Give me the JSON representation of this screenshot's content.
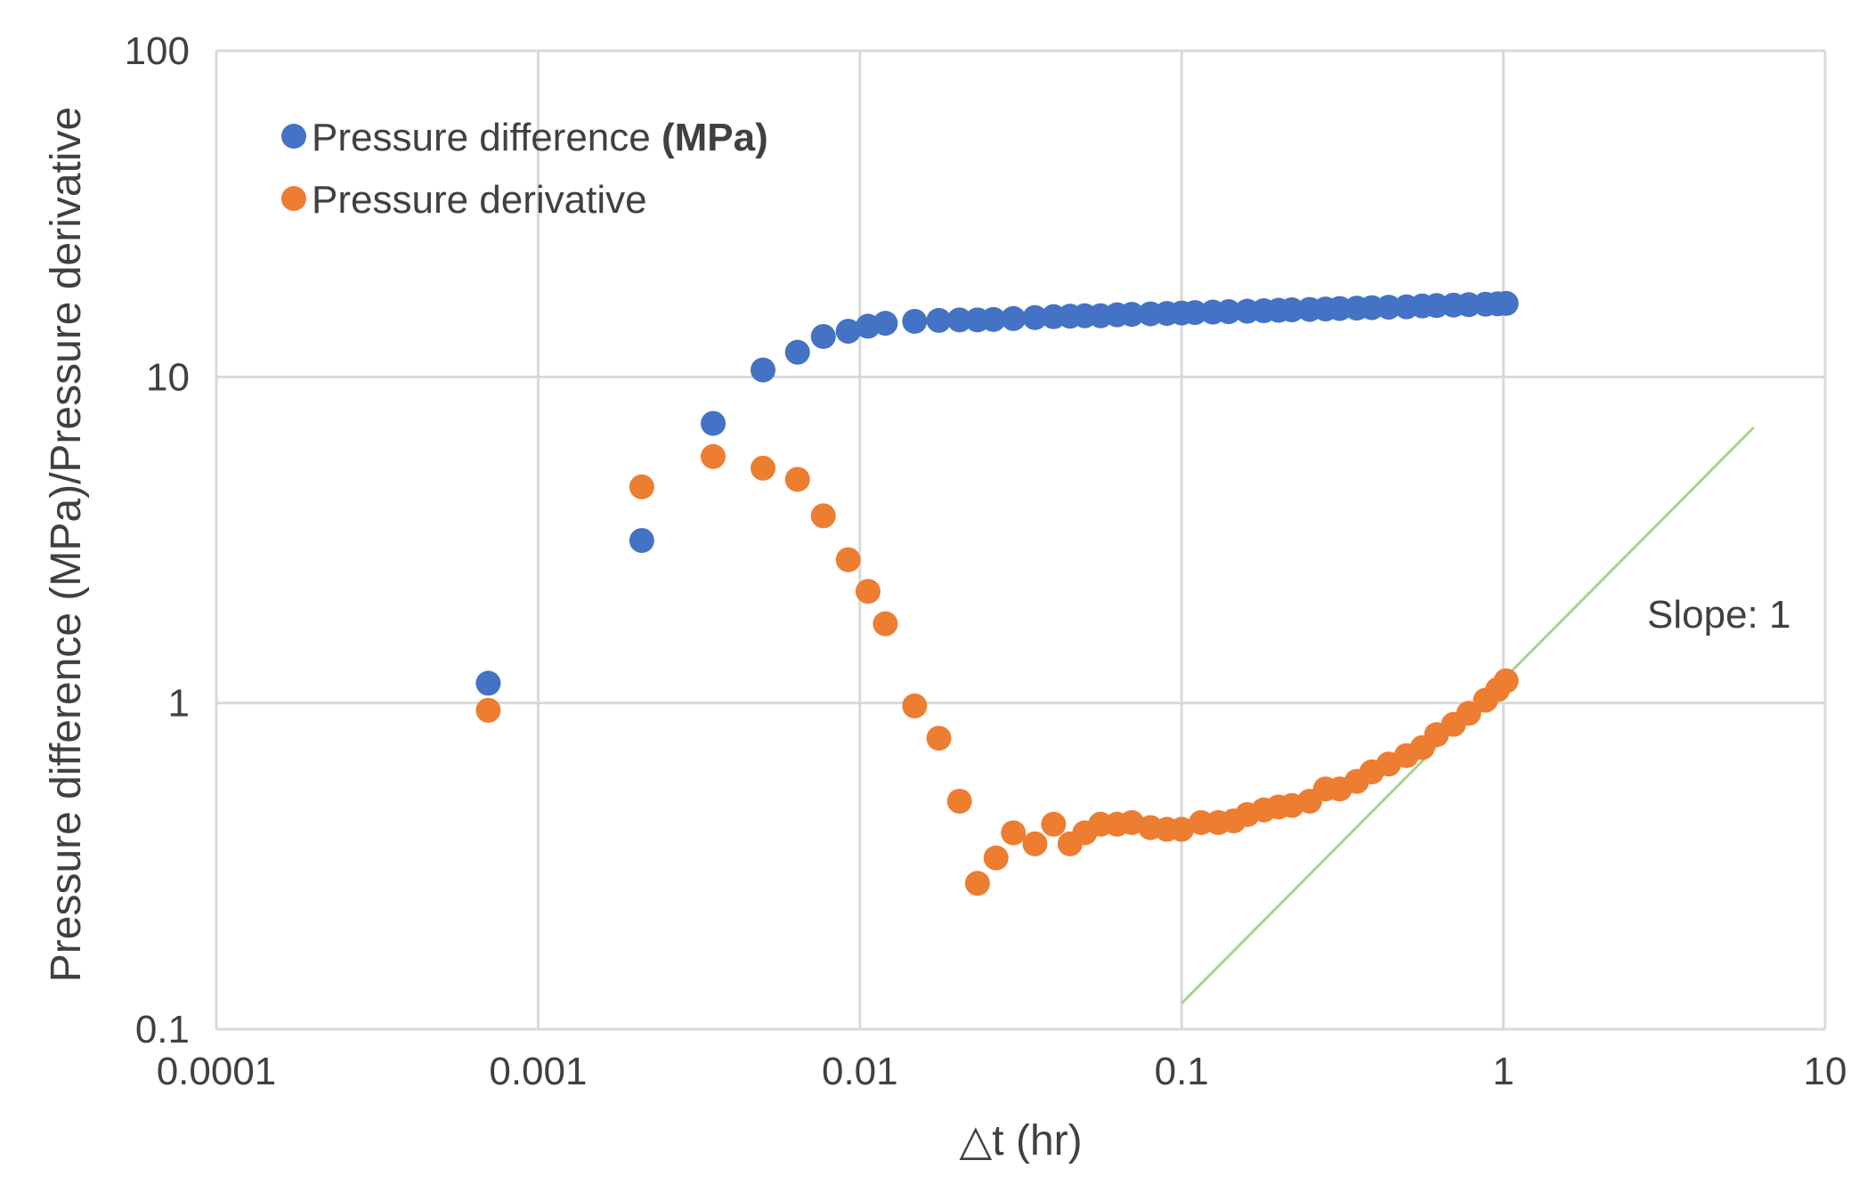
{
  "chart_data": {
    "type": "scatter",
    "title": "",
    "xlabel": "△t (hr)",
    "ylabel": "Pressure difference (MPa)/Pressure derivative",
    "xscale": "log",
    "yscale": "log",
    "xlim": [
      0.0001,
      10
    ],
    "ylim": [
      0.1,
      100
    ],
    "grid": true,
    "legend_position": "top-left",
    "x_tick_labels": [
      "0.0001",
      "0.001",
      "0.01",
      "0.1",
      "1",
      "10"
    ],
    "y_tick_labels": [
      "0.1",
      "1",
      "10",
      "100"
    ],
    "legend": {
      "entries": [
        {
          "label": "Pressure difference ",
          "unit": "(MPa)"
        },
        {
          "label": "Pressure derivative",
          "unit": ""
        }
      ]
    },
    "series": [
      {
        "name": "Pressure difference (MPa)",
        "color": "#4472C4",
        "points": [
          [
            0.0007,
            1.15
          ],
          [
            0.0021,
            3.15
          ],
          [
            0.0035,
            7.2
          ],
          [
            0.005,
            10.5
          ],
          [
            0.0064,
            11.9
          ],
          [
            0.0077,
            13.3
          ],
          [
            0.0092,
            13.8
          ],
          [
            0.0106,
            14.3
          ],
          [
            0.012,
            14.6
          ],
          [
            0.0148,
            14.8
          ],
          [
            0.0176,
            14.9
          ],
          [
            0.0204,
            14.95
          ],
          [
            0.0232,
            14.95
          ],
          [
            0.026,
            15.0
          ],
          [
            0.03,
            15.1
          ],
          [
            0.035,
            15.2
          ],
          [
            0.04,
            15.3
          ],
          [
            0.045,
            15.35
          ],
          [
            0.05,
            15.4
          ],
          [
            0.056,
            15.4
          ],
          [
            0.063,
            15.5
          ],
          [
            0.07,
            15.55
          ],
          [
            0.08,
            15.6
          ],
          [
            0.09,
            15.65
          ],
          [
            0.1,
            15.7
          ],
          [
            0.11,
            15.75
          ],
          [
            0.125,
            15.8
          ],
          [
            0.14,
            15.85
          ],
          [
            0.16,
            15.9
          ],
          [
            0.18,
            15.95
          ],
          [
            0.2,
            16.0
          ],
          [
            0.22,
            16.05
          ],
          [
            0.25,
            16.1
          ],
          [
            0.28,
            16.15
          ],
          [
            0.31,
            16.2
          ],
          [
            0.35,
            16.25
          ],
          [
            0.39,
            16.3
          ],
          [
            0.44,
            16.35
          ],
          [
            0.5,
            16.4
          ],
          [
            0.56,
            16.5
          ],
          [
            0.62,
            16.55
          ],
          [
            0.7,
            16.6
          ],
          [
            0.78,
            16.65
          ],
          [
            0.88,
            16.7
          ],
          [
            0.96,
            16.75
          ],
          [
            1.02,
            16.8
          ]
        ]
      },
      {
        "name": "Pressure derivative",
        "color": "#ED7D31",
        "points": [
          [
            0.0007,
            0.95
          ],
          [
            0.0021,
            4.6
          ],
          [
            0.0035,
            5.7
          ],
          [
            0.005,
            5.25
          ],
          [
            0.0064,
            4.85
          ],
          [
            0.0077,
            3.75
          ],
          [
            0.0092,
            2.75
          ],
          [
            0.0106,
            2.2
          ],
          [
            0.012,
            1.75
          ],
          [
            0.0148,
            0.98
          ],
          [
            0.0176,
            0.78
          ],
          [
            0.0204,
            0.5
          ],
          [
            0.0232,
            0.28
          ],
          [
            0.0265,
            0.335
          ],
          [
            0.03,
            0.4
          ],
          [
            0.035,
            0.37
          ],
          [
            0.04,
            0.425
          ],
          [
            0.045,
            0.37
          ],
          [
            0.05,
            0.4
          ],
          [
            0.056,
            0.425
          ],
          [
            0.063,
            0.425
          ],
          [
            0.07,
            0.43
          ],
          [
            0.08,
            0.415
          ],
          [
            0.09,
            0.41
          ],
          [
            0.1,
            0.41
          ],
          [
            0.115,
            0.43
          ],
          [
            0.13,
            0.43
          ],
          [
            0.145,
            0.435
          ],
          [
            0.16,
            0.455
          ],
          [
            0.18,
            0.47
          ],
          [
            0.2,
            0.48
          ],
          [
            0.22,
            0.485
          ],
          [
            0.25,
            0.5
          ],
          [
            0.28,
            0.545
          ],
          [
            0.31,
            0.545
          ],
          [
            0.35,
            0.575
          ],
          [
            0.39,
            0.615
          ],
          [
            0.44,
            0.65
          ],
          [
            0.5,
            0.69
          ],
          [
            0.56,
            0.73
          ],
          [
            0.62,
            0.8
          ],
          [
            0.7,
            0.86
          ],
          [
            0.78,
            0.93
          ],
          [
            0.88,
            1.02
          ],
          [
            0.96,
            1.1
          ],
          [
            1.02,
            1.17
          ]
        ]
      }
    ],
    "reference_line": {
      "label": "Slope: 1",
      "color": "#A9D18E",
      "points": [
        [
          0.1,
          0.12
        ],
        [
          6.0,
          7.0
        ]
      ]
    }
  }
}
